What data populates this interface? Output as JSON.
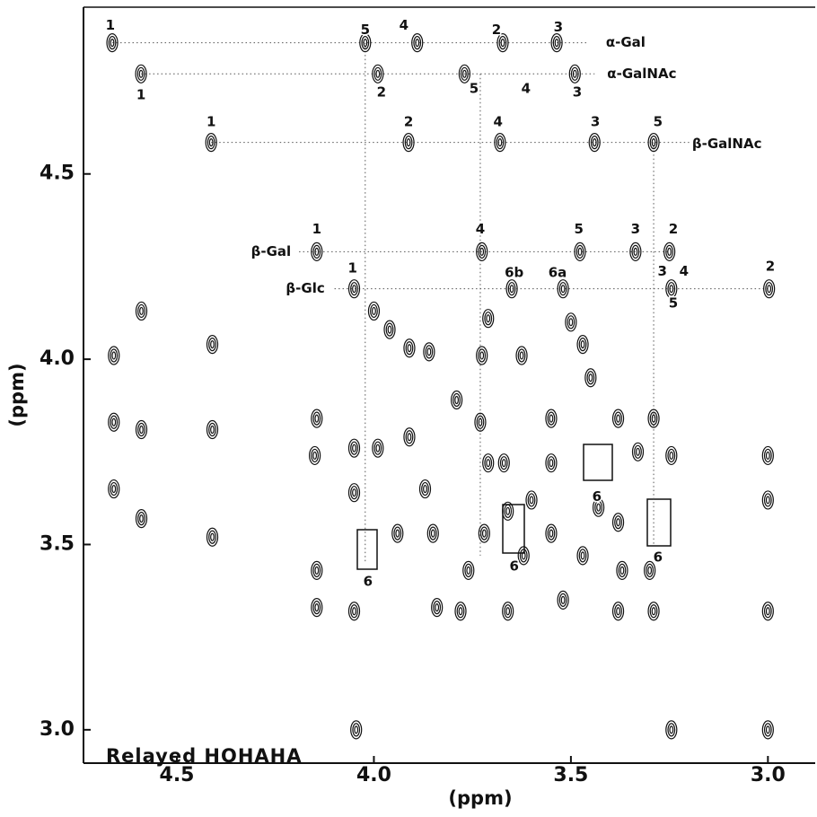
{
  "chart_data": {
    "type": "scatter",
    "xlabel": "(ppm)",
    "ylabel": "(ppm)",
    "watermark": "Relayed HOHAHA",
    "xlim": [
      4.737,
      2.88
    ],
    "ylim": [
      2.91,
      4.95
    ],
    "xticks": [
      4.5,
      {
        "value": 4.0,
        "label": "4.0"
      },
      3.5,
      {
        "value": 3.0,
        "label": "3.0"
      }
    ],
    "yticks": [
      4.5,
      {
        "value": 4.0,
        "label": "4.0"
      },
      3.5,
      {
        "value": 3.0,
        "label": "3.0"
      }
    ],
    "color": "#111111",
    "x": [
      4.664,
      4.022,
      3.89,
      3.673,
      3.536,
      4.591,
      3.99,
      3.77,
      3.49,
      4.413,
      3.912,
      3.68,
      3.44,
      3.29,
      4.145,
      3.726,
      3.477,
      3.336,
      3.25,
      4.05,
      3.65,
      3.52,
      3.245,
      2.997,
      4.66,
      4.66,
      4.66,
      4.59,
      4.59,
      4.59,
      4.41,
      4.41,
      4.41,
      4.145,
      4.145,
      4.145,
      4.05,
      4.05,
      4.05,
      4.045,
      4.0,
      3.96,
      3.99,
      3.94,
      3.91,
      3.91,
      3.87,
      3.86,
      3.85,
      3.79,
      3.72,
      3.73,
      3.71,
      3.67,
      3.71,
      3.726,
      3.625,
      3.55,
      3.55,
      3.5,
      3.47,
      3.45,
      3.55,
      3.6,
      3.52,
      3.47,
      3.43,
      3.38,
      3.38,
      3.37,
      3.38,
      3.33,
      3.3,
      3.29,
      3.29,
      3.245,
      3.245,
      3.0,
      3.0,
      3.0,
      3.0,
      3.66,
      3.78,
      3.76,
      3.84,
      3.66,
      3.62,
      4.15
    ],
    "values": [
      4.854,
      4.854,
      4.854,
      4.854,
      4.854,
      4.77,
      4.77,
      4.77,
      4.77,
      4.585,
      4.585,
      4.585,
      4.585,
      4.585,
      4.29,
      4.29,
      4.29,
      4.29,
      4.29,
      4.19,
      4.19,
      4.19,
      4.19,
      4.19,
      4.01,
      3.83,
      3.65,
      4.13,
      3.81,
      3.57,
      4.04,
      3.81,
      3.52,
      3.84,
      3.43,
      3.33,
      3.76,
      3.64,
      3.32,
      3.0,
      4.13,
      4.08,
      3.76,
      3.53,
      4.03,
      3.79,
      3.65,
      4.02,
      3.53,
      3.89,
      3.53,
      3.83,
      3.72,
      3.72,
      4.11,
      4.01,
      4.01,
      3.84,
      3.53,
      4.1,
      4.04,
      3.95,
      3.72,
      3.62,
      3.35,
      3.47,
      3.6,
      3.84,
      3.56,
      3.43,
      3.32,
      3.75,
      3.43,
      3.32,
      3.84,
      3.74,
      3.0,
      3.74,
      3.62,
      3.32,
      3.0,
      3.32,
      3.32,
      3.43,
      3.33,
      3.59,
      3.47,
      3.74
    ],
    "dotted_lines": [
      {
        "x": [
          4.664,
          3.46
        ],
        "y": [
          4.854,
          4.854
        ]
      },
      {
        "x": [
          4.591,
          3.44
        ],
        "y": [
          4.77,
          4.77
        ]
      },
      {
        "x": [
          4.413,
          3.2
        ],
        "y": [
          4.585,
          4.585
        ]
      },
      {
        "x": [
          4.19,
          3.25
        ],
        "y": [
          4.29,
          4.29
        ]
      },
      {
        "x": [
          4.1,
          2.997
        ],
        "y": [
          4.19,
          4.19
        ]
      },
      {
        "x": [
          4.022,
          4.022
        ],
        "y": [
          4.854,
          3.45
        ]
      },
      {
        "x": [
          3.73,
          3.73
        ],
        "y": [
          4.77,
          3.47
        ]
      },
      {
        "x": [
          3.29,
          3.29
        ],
        "y": [
          4.585,
          3.5
        ]
      }
    ],
    "residues": [
      {
        "text": "α-Gal",
        "x": 3.361,
        "y": 4.854
      },
      {
        "text": "α-GalNAc",
        "x": 3.32,
        "y": 4.77
      },
      {
        "text": "β-GalNAc",
        "x": 3.104,
        "y": 4.58
      },
      {
        "text": "β-Gal",
        "x": 4.261,
        "y": 4.29
      },
      {
        "text": "β-Glc",
        "x": 4.174,
        "y": 4.19
      }
    ],
    "labels": [
      {
        "text": "1",
        "x": 4.669,
        "y": 4.9
      },
      {
        "text": "5",
        "x": 4.022,
        "y": 4.888
      },
      {
        "text": "4",
        "x": 3.924,
        "y": 4.9
      },
      {
        "text": "2",
        "x": 3.689,
        "y": 4.888
      },
      {
        "text": "3",
        "x": 3.532,
        "y": 4.895
      },
      {
        "text": "1",
        "x": 4.591,
        "y": 4.713
      },
      {
        "text": "2",
        "x": 3.981,
        "y": 4.72
      },
      {
        "text": "5",
        "x": 3.746,
        "y": 4.73
      },
      {
        "text": "4",
        "x": 3.614,
        "y": 4.73
      },
      {
        "text": "3",
        "x": 3.484,
        "y": 4.72
      },
      {
        "text": "1",
        "x": 4.413,
        "y": 4.64
      },
      {
        "text": "2",
        "x": 3.912,
        "y": 4.64
      },
      {
        "text": "4",
        "x": 3.685,
        "y": 4.64
      },
      {
        "text": "3",
        "x": 3.438,
        "y": 4.64
      },
      {
        "text": "5",
        "x": 3.279,
        "y": 4.64
      },
      {
        "text": "1",
        "x": 4.145,
        "y": 4.35
      },
      {
        "text": "4",
        "x": 3.73,
        "y": 4.35
      },
      {
        "text": "5",
        "x": 3.48,
        "y": 4.35
      },
      {
        "text": "3",
        "x": 3.336,
        "y": 4.35
      },
      {
        "text": "2",
        "x": 3.24,
        "y": 4.35
      },
      {
        "text": "1",
        "x": 4.054,
        "y": 4.245
      },
      {
        "text": "6b",
        "x": 3.644,
        "y": 4.233
      },
      {
        "text": "6a",
        "x": 3.534,
        "y": 4.233
      },
      {
        "text": "3",
        "x": 3.268,
        "y": 4.236
      },
      {
        "text": "4",
        "x": 3.213,
        "y": 4.236
      },
      {
        "text": "2",
        "x": 2.994,
        "y": 4.25
      },
      {
        "text": "5",
        "x": 3.24,
        "y": 4.15
      },
      {
        "text": "6",
        "x": 4.015,
        "y": 3.4
      },
      {
        "text": "6",
        "x": 3.644,
        "y": 3.44
      },
      {
        "text": "6",
        "x": 3.434,
        "y": 3.628
      },
      {
        "text": "6",
        "x": 3.279,
        "y": 3.465
      }
    ]
  }
}
